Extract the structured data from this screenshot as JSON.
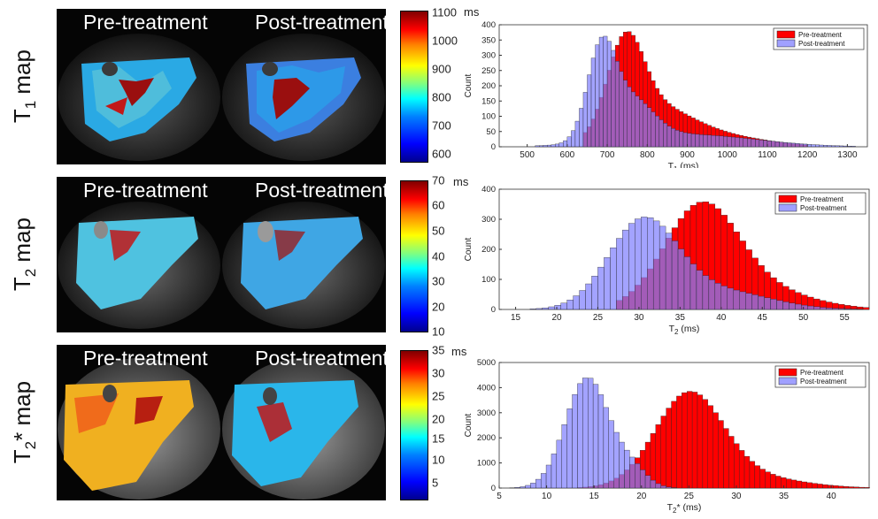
{
  "rows": [
    {
      "label_main": "T",
      "label_sub": "1",
      "label_rest": " map"
    },
    {
      "label_main": "T",
      "label_sub": "2",
      "label_rest": " map"
    },
    {
      "label_main": "T",
      "label_sub": "2",
      "label_rest": "* map"
    }
  ],
  "panels": {
    "pre": "Pre-treatment",
    "post": "Post-treatment"
  },
  "colorbars": [
    {
      "unit": "ms",
      "ticks": [
        "1100",
        "1000",
        "900",
        "800",
        "700",
        "600"
      ]
    },
    {
      "unit": "ms",
      "ticks": [
        "70",
        "60",
        "50",
        "40",
        "30",
        "20",
        "10"
      ]
    },
    {
      "unit": "ms",
      "ticks": [
        "35",
        "30",
        "25",
        "20",
        "15",
        "10",
        "5"
      ]
    }
  ],
  "chart_data": [
    {
      "type": "bar",
      "xlabel_main": "T",
      "xlabel_sub": "1",
      "xlabel_rest": " (ms)",
      "ylabel": "Count",
      "xlim": [
        430,
        1350
      ],
      "ylim": [
        0,
        400
      ],
      "xticks": [
        500,
        600,
        700,
        800,
        900,
        1000,
        1100,
        1200,
        1300
      ],
      "yticks": [
        0,
        50,
        100,
        150,
        200,
        250,
        300,
        350,
        400
      ],
      "legend": "top-right",
      "series": [
        {
          "name": "Pre-treatment",
          "color": "#ff0000",
          "peaks": [
            [
              745,
              280,
              45
            ],
            [
              810,
              110,
              90
            ],
            [
              950,
              40,
              130
            ]
          ],
          "cut": [
            640,
            1200
          ]
        },
        {
          "name": "Post-treatment",
          "color": "#8080ff",
          "peaks": [
            [
              685,
              290,
              35
            ],
            [
              760,
              130,
              55
            ],
            [
              900,
              40,
              170
            ]
          ],
          "cut": [
            520,
            1320
          ]
        }
      ],
      "bin": 10
    },
    {
      "type": "bar",
      "xlabel_main": "T",
      "xlabel_sub": "2",
      "xlabel_rest": " (ms)",
      "ylabel": "Count",
      "xlim": [
        13,
        58
      ],
      "ylim": [
        0,
        400
      ],
      "xticks": [
        15,
        20,
        25,
        30,
        35,
        40,
        45,
        50,
        55
      ],
      "yticks": [
        0,
        100,
        200,
        300,
        400
      ],
      "legend": "top-right",
      "series": [
        {
          "name": "Pre-treatment",
          "color": "#ff0000",
          "peaks": [
            [
              37.5,
              330,
              4.5
            ],
            [
              45,
              60,
              6
            ]
          ],
          "cut": [
            27,
            58
          ]
        },
        {
          "name": "Post-treatment",
          "color": "#8080ff",
          "peaks": [
            [
              30.5,
              290,
              4.2
            ],
            [
              40,
              60,
              6
            ]
          ],
          "cut": [
            17,
            57
          ]
        }
      ],
      "bin": 0.75
    },
    {
      "type": "bar",
      "xlabel_main": "T",
      "xlabel_sub": "2",
      "xlabel_rest": "* (ms)",
      "ylabel": "Count",
      "xlim": [
        5,
        44
      ],
      "ylim": [
        0,
        5000
      ],
      "xticks": [
        5,
        10,
        15,
        20,
        25,
        30,
        35,
        40
      ],
      "yticks": [
        0,
        1000,
        2000,
        3000,
        4000,
        5000
      ],
      "legend": "top-right",
      "series": [
        {
          "name": "Pre-treatment",
          "color": "#ff0000",
          "peaks": [
            [
              25,
              3700,
              3.6
            ],
            [
              32,
              400,
              5
            ]
          ],
          "cut": [
            13,
            44
          ]
        },
        {
          "name": "Post-treatment",
          "color": "#8080ff",
          "peaks": [
            [
              14.3,
              4400,
              2.3
            ],
            [
              19,
              700,
              1.6
            ]
          ],
          "cut": [
            6,
            25
          ]
        }
      ],
      "bin": 0.55
    }
  ]
}
